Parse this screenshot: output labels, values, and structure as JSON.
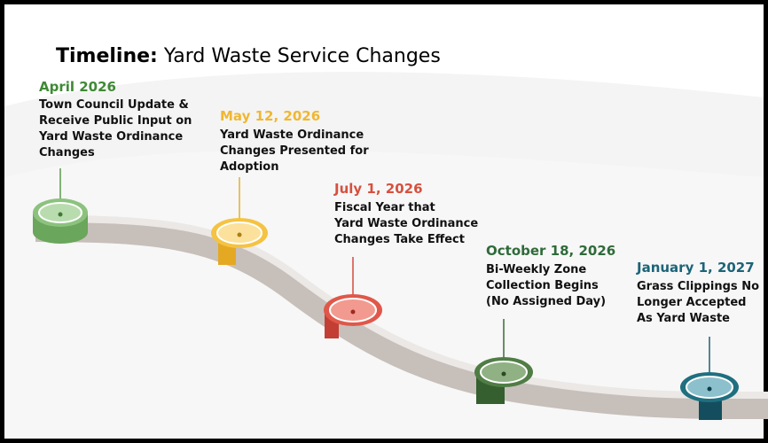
{
  "title": {
    "label": "Timeline:",
    "text": "Yard Waste Service Changes"
  },
  "milestones": [
    {
      "date": "April 2026",
      "lines": [
        "Town Council Update &",
        "Receive Public Input on",
        "Yard Waste Ordinance",
        "Changes"
      ]
    },
    {
      "date": "May 12, 2026",
      "lines": [
        "Yard Waste Ordinance",
        "Changes Presented for",
        "Adoption"
      ]
    },
    {
      "date": "July 1, 2026",
      "lines": [
        "Fiscal Year that",
        "Yard Waste Ordinance",
        "Changes Take Effect"
      ]
    },
    {
      "date": "October 18, 2026",
      "lines": [
        "Bi-Weekly Zone",
        "Collection Begins",
        "(No Assigned Day)"
      ]
    },
    {
      "date": "January 1, 2027",
      "lines": [
        "Grass Clippings No",
        "Longer Accepted",
        "As Yard Waste"
      ]
    }
  ]
}
